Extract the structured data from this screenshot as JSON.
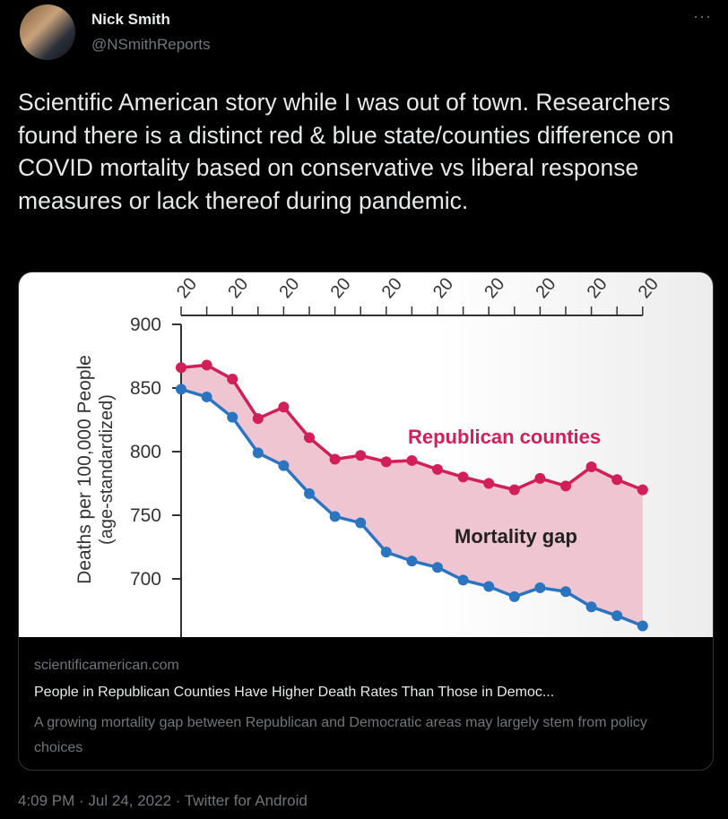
{
  "author": {
    "name": "Nick Smith",
    "handle": "@NSmithReports"
  },
  "more_icon": "more-horizontal-icon",
  "tweet_text": "Scientific American story while I was out of town. Researchers found there is a distinct red & blue state/counties difference on COVID mortality based on conservative vs liberal response measures or lack thereof during pandemic.",
  "card": {
    "domain": "scientificamerican.com",
    "title": "People in Republican Counties Have Higher Death Rates Than Those in Democ...",
    "description": "A growing mortality gap between Republican and Democratic areas may largely stem from policy choices"
  },
  "meta": "4:09 PM · Jul 24, 2022 · Twitter for Android",
  "chart_data": {
    "type": "line",
    "ylabel": "Deaths per 100,000 People",
    "ylabel2": "(age-standardized)",
    "yticks": [
      900,
      850,
      800,
      750,
      700
    ],
    "ylim": [
      660,
      900
    ],
    "xtick_label": "20",
    "annotations": [
      "Republican counties",
      "Mortality gap"
    ],
    "colors": {
      "republican": "#d21f5a",
      "democratic": "#2a74c0",
      "gap": "#f0c5d2"
    },
    "series": [
      {
        "name": "Republican counties",
        "values": [
          866,
          868,
          857,
          826,
          835,
          811,
          794,
          797,
          792,
          793,
          786,
          780,
          775,
          770,
          779,
          773,
          788,
          778,
          770
        ]
      },
      {
        "values": [
          849,
          843,
          827,
          799,
          789,
          767,
          749,
          744,
          721,
          714,
          709,
          699,
          694,
          686,
          693,
          690,
          678,
          671,
          663
        ]
      }
    ]
  }
}
